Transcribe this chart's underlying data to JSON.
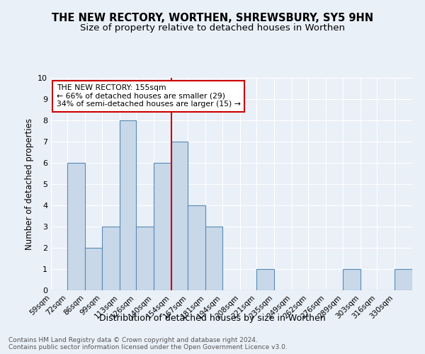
{
  "title": "THE NEW RECTORY, WORTHEN, SHREWSBURY, SY5 9HN",
  "subtitle": "Size of property relative to detached houses in Worthen",
  "xlabel": "Distribution of detached houses by size in Worthen",
  "ylabel": "Number of detached properties",
  "footnote1": "Contains HM Land Registry data © Crown copyright and database right 2024.",
  "footnote2": "Contains public sector information licensed under the Open Government Licence v3.0.",
  "bin_labels": [
    "59sqm",
    "72sqm",
    "86sqm",
    "99sqm",
    "113sqm",
    "126sqm",
    "140sqm",
    "154sqm",
    "167sqm",
    "181sqm",
    "194sqm",
    "208sqm",
    "221sqm",
    "235sqm",
    "249sqm",
    "262sqm",
    "276sqm",
    "289sqm",
    "303sqm",
    "316sqm",
    "330sqm"
  ],
  "bar_heights": [
    0,
    6,
    2,
    3,
    8,
    3,
    6,
    7,
    4,
    3,
    0,
    0,
    1,
    0,
    0,
    0,
    0,
    1,
    0,
    0,
    1
  ],
  "bar_color": "#c8d8e8",
  "bar_edge_color": "#5a8ab5",
  "property_line_x": 154,
  "property_line_color": "#cc0000",
  "annotation_title": "THE NEW RECTORY: 155sqm",
  "annotation_line1": "← 66% of detached houses are smaller (29)",
  "annotation_line2": "34% of semi-detached houses are larger (15) →",
  "annotation_box_color": "#ffffff",
  "annotation_box_edge": "#cc0000",
  "ylim": [
    0,
    10
  ],
  "background_color": "#eaf0f8",
  "plot_bg_color": "#eaf0f8",
  "grid_color": "#ffffff",
  "title_fontsize": 10.5,
  "subtitle_fontsize": 9.5
}
